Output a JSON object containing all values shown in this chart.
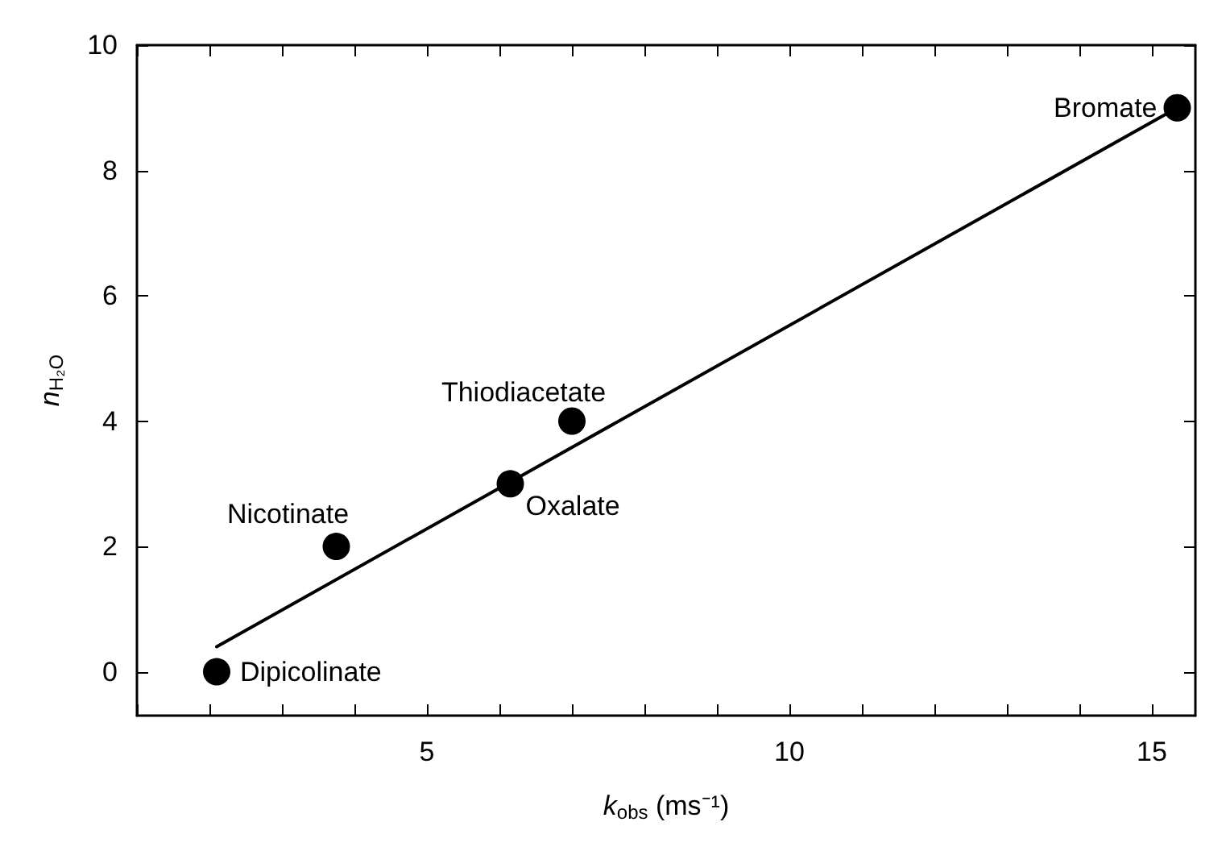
{
  "chart_data": {
    "type": "scatter",
    "xlabel": "k$_{obs}$ (ms⁻¹)",
    "ylabel": "n$_{H₂O}$",
    "xlim": [
      1,
      15.6
    ],
    "ylim": [
      -0.7,
      10
    ],
    "xticks": [
      {
        "value": 1,
        "label": null
      },
      {
        "value": 2,
        "label": null
      },
      {
        "value": 3,
        "label": null
      },
      {
        "value": 4,
        "label": null
      },
      5,
      {
        "value": 6,
        "label": null
      },
      {
        "value": 7,
        "label": null
      },
      {
        "value": 8,
        "label": null
      },
      {
        "value": 9,
        "label": null
      },
      10,
      {
        "value": 11,
        "label": null
      },
      {
        "value": 12,
        "label": null
      },
      {
        "value": 13,
        "label": null
      },
      {
        "value": 14,
        "label": null
      },
      15
    ],
    "yticks": [
      0,
      2,
      4,
      6,
      8,
      10
    ],
    "grid": false,
    "marker": "circle",
    "series": [
      {
        "color": "#000000",
        "x": [
          2.1,
          3.75,
          6.15,
          7.0,
          15.35
        ],
        "values": [
          0,
          2,
          3,
          4,
          9
        ]
      },
      {
        "type": "line",
        "color": "#000000",
        "line_style": "solid",
        "marker": "none",
        "x": [
          2.1,
          15.35
        ],
        "values": [
          0.4,
          9.0
        ]
      }
    ],
    "annotations": [
      {
        "text": "Dipicolinate",
        "x": 2.1,
        "y": 0
      },
      {
        "text": "Nicotinate",
        "x": 3.75,
        "y": 2
      },
      {
        "text": "Oxalate",
        "x": 6.15,
        "y": 3
      },
      {
        "text": "Thiodiacetate",
        "x": 7.0,
        "y": 4
      },
      {
        "text": "Bromate",
        "x": 15.35,
        "y": 9
      }
    ]
  }
}
